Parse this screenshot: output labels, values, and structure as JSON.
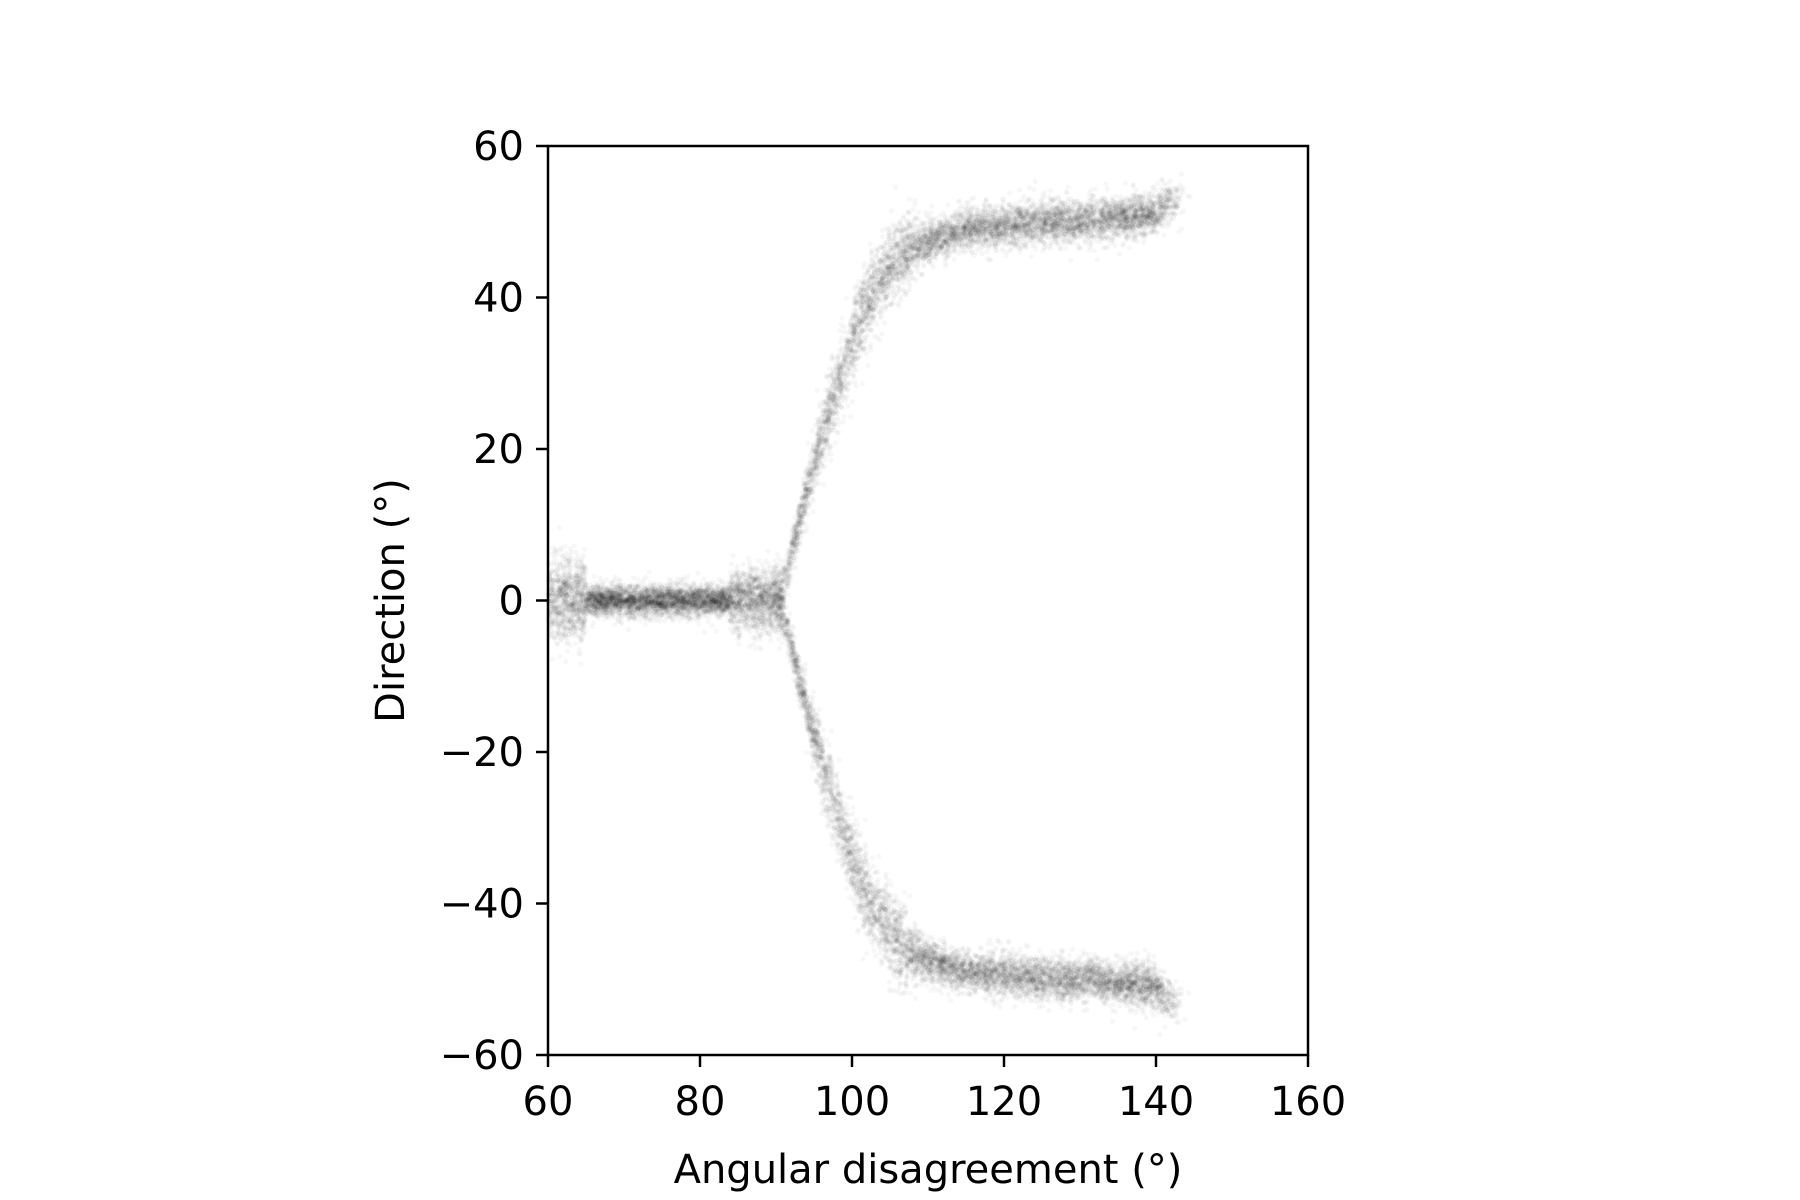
{
  "chart_data": {
    "type": "scatter",
    "title": "",
    "xlabel": "Angular disagreement (°)",
    "ylabel": "Direction (°)",
    "xlim": [
      60,
      160
    ],
    "ylim": [
      -60,
      60
    ],
    "xticks": [
      60,
      80,
      100,
      120,
      140,
      160
    ],
    "yticks": [
      -60,
      -40,
      -20,
      0,
      20,
      40,
      60
    ],
    "xtick_labels": [
      "60",
      "80",
      "100",
      "120",
      "140",
      "160"
    ],
    "ytick_labels": [
      "−60",
      "−40",
      "−20",
      "0",
      "20",
      "40",
      "60"
    ],
    "grid": false,
    "legend": "none",
    "point_color": "#000000",
    "point_alpha": 0.03,
    "description_series": [
      {
        "branch": "central",
        "x": [
          60,
          65,
          70,
          75,
          80,
          85,
          88,
          91
        ],
        "y": [
          0,
          0,
          0,
          0,
          0,
          0,
          0,
          0
        ]
      },
      {
        "branch": "upper",
        "x": [
          91,
          93,
          95,
          97,
          99,
          101,
          103,
          105,
          107,
          110,
          115,
          120,
          125,
          130,
          135,
          140,
          142
        ],
        "y": [
          2,
          10,
          18,
          25,
          31,
          37,
          41,
          44,
          46,
          47.5,
          49,
          49.5,
          50,
          50,
          50.5,
          51,
          53
        ]
      },
      {
        "branch": "lower",
        "x": [
          91,
          93,
          95,
          97,
          99,
          101,
          103,
          105,
          107,
          110,
          115,
          120,
          125,
          130,
          135,
          140,
          142
        ],
        "y": [
          -2,
          -10,
          -18,
          -25,
          -31,
          -37,
          -41,
          -44,
          -46,
          -47.5,
          -49,
          -49.5,
          -50,
          -50,
          -50.5,
          -51,
          -53
        ]
      }
    ]
  }
}
